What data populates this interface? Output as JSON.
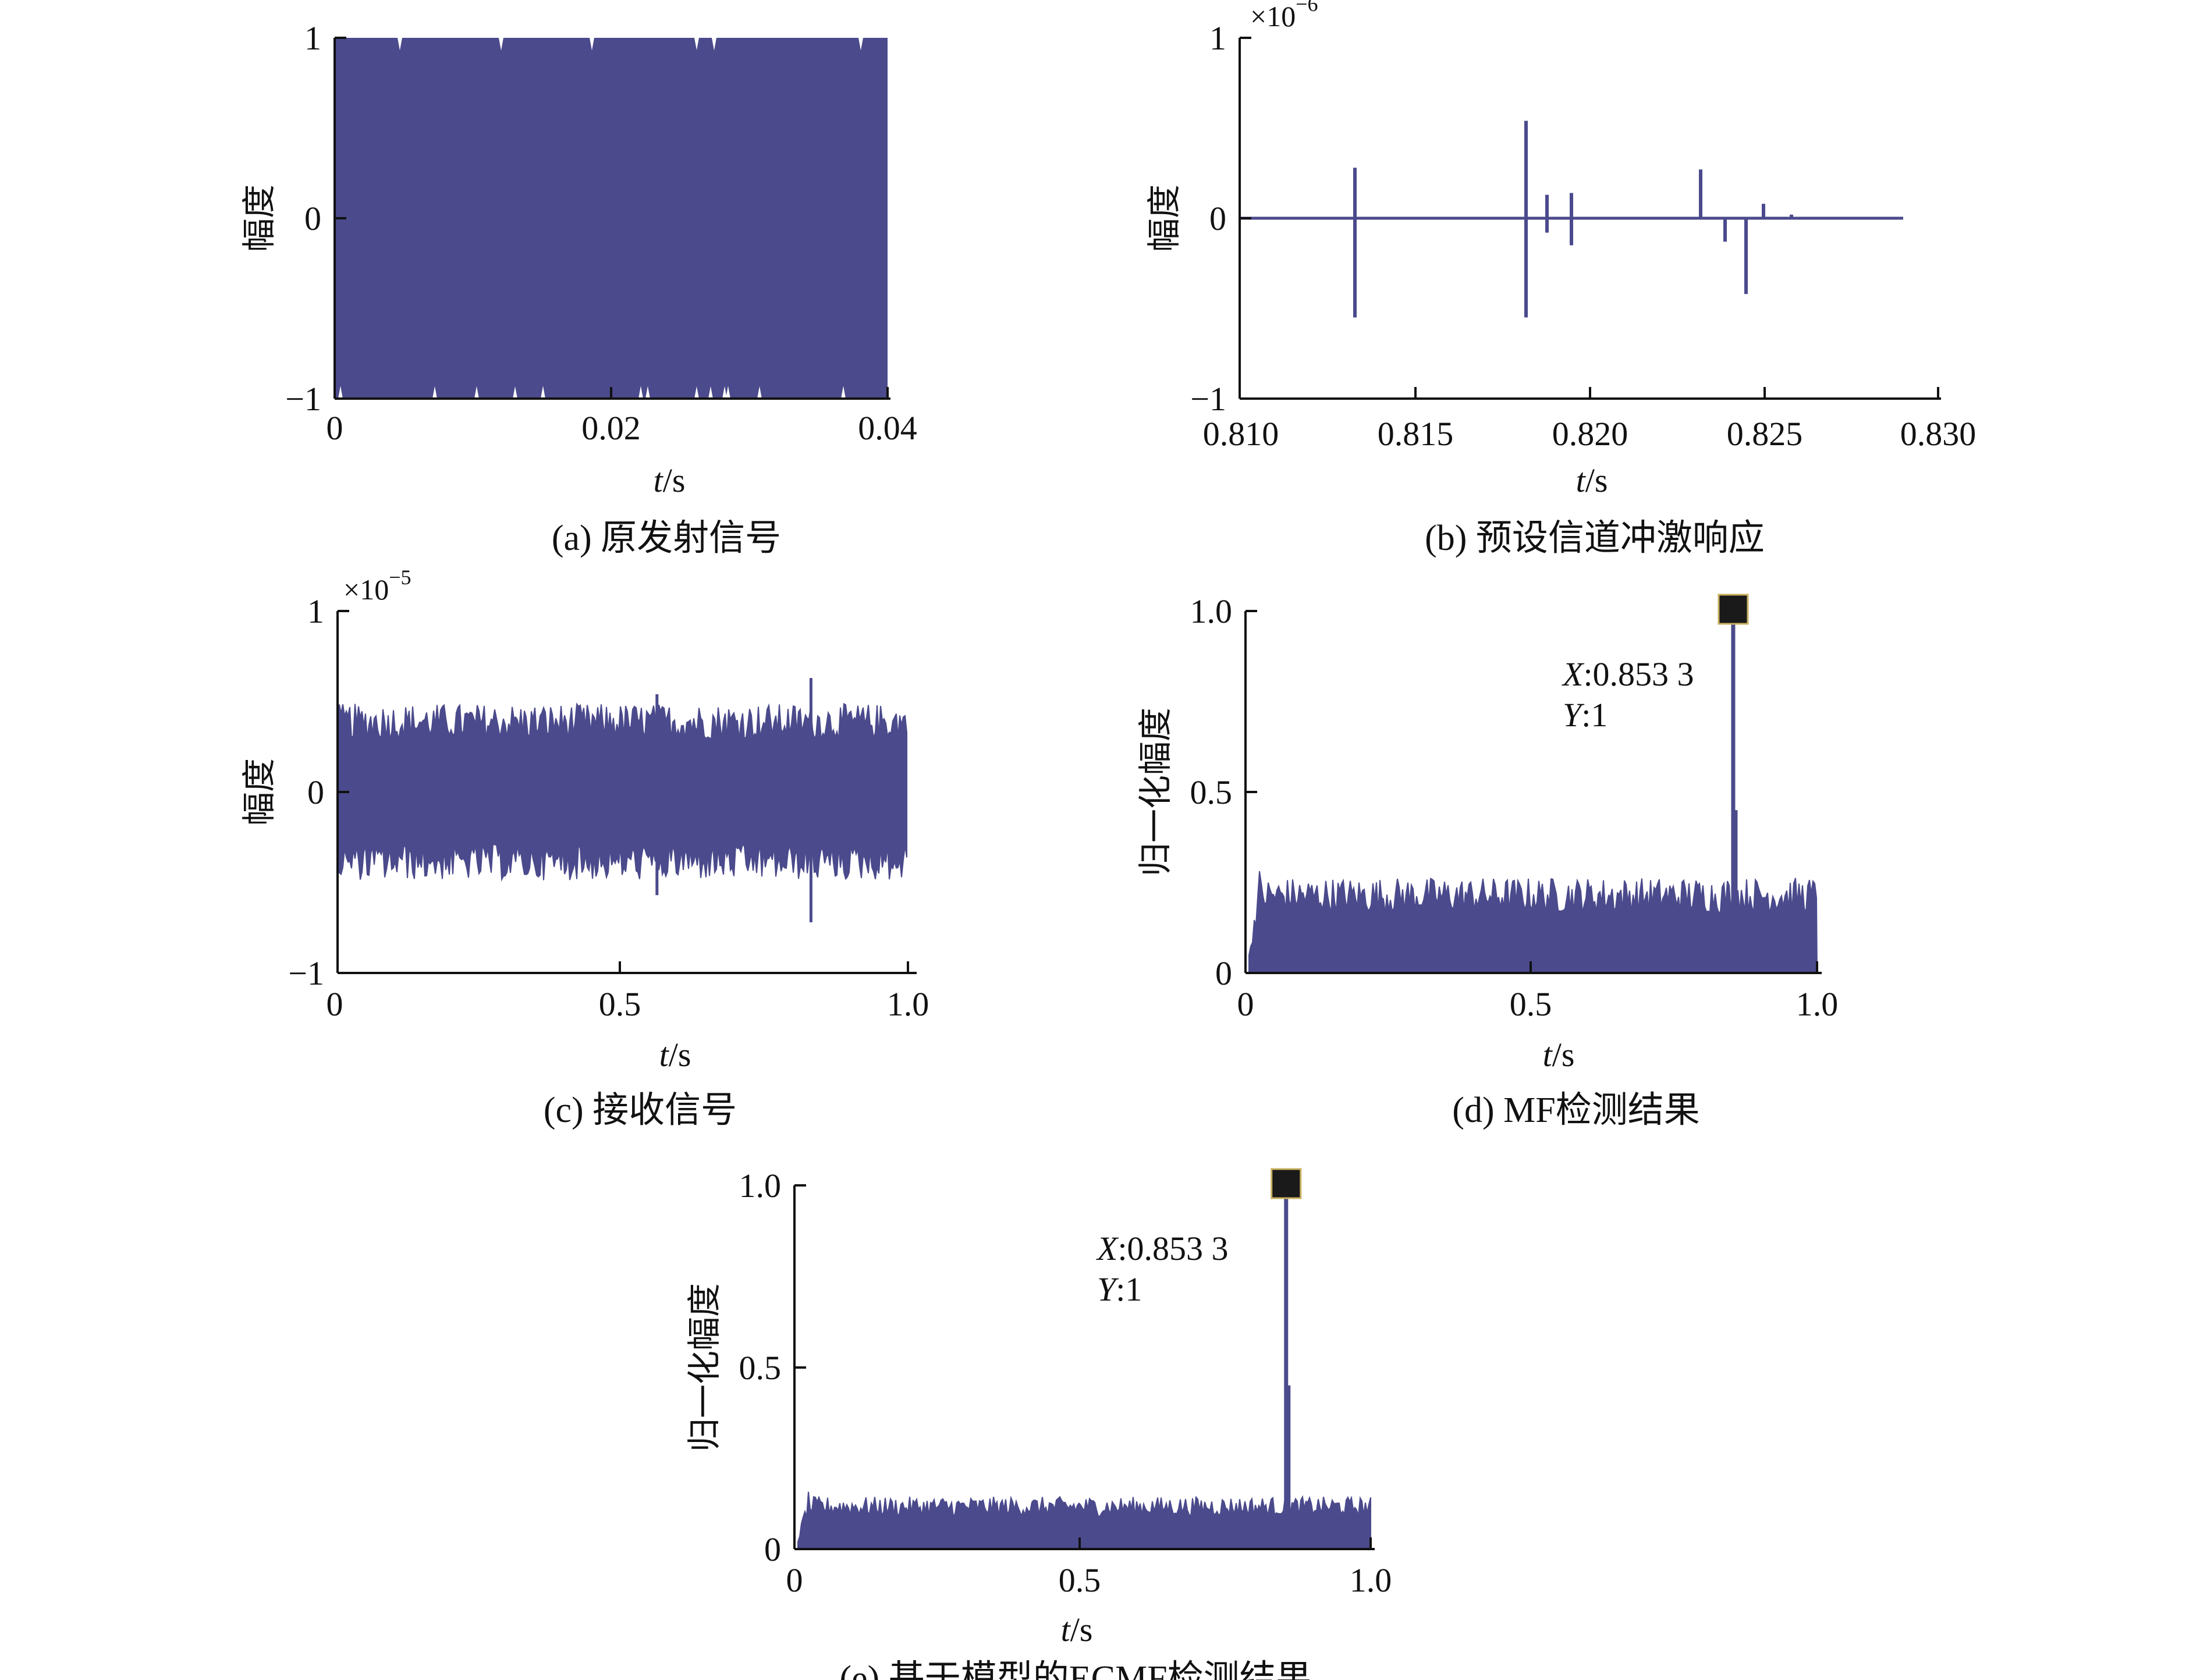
{
  "colors": {
    "signal": "#4b4a8c",
    "axis": "#111111",
    "marker": "#1a1a1a"
  },
  "chart_data": [
    {
      "id": "a",
      "type": "line",
      "caption": "(a) 原发射信号",
      "xlabel_italic": "t",
      "xlabel_unit": "/s",
      "ylabel": "幅度",
      "multiplier": "",
      "multiplier_exp": "",
      "xlim": [
        0,
        0.04
      ],
      "ylim": [
        -1,
        1
      ],
      "xticks": [
        "0",
        "0.02",
        "0.04"
      ],
      "yticks": [
        "−1",
        "0",
        "1"
      ],
      "signal": "dense-oscillation",
      "envelope": [
        -1,
        1
      ],
      "extent": [
        0,
        0.04
      ]
    },
    {
      "id": "b",
      "type": "line",
      "caption": "(b) 预设信道冲激响应",
      "xlabel_italic": "t",
      "xlabel_unit": "/s",
      "ylabel": "幅度",
      "multiplier": "×10",
      "multiplier_exp": "−6",
      "xlim": [
        0.81,
        0.83
      ],
      "ylim": [
        -1,
        1
      ],
      "xticks": [
        "0.810",
        "0.815",
        "0.820",
        "0.825",
        "0.830"
      ],
      "yticks": [
        "−1",
        "0",
        "1"
      ],
      "signal": "impulses",
      "extent": [
        0.81,
        0.829
      ],
      "impulses": [
        {
          "t": 0.8133,
          "min": -0.55,
          "max": 0.28
        },
        {
          "t": 0.8182,
          "min": -0.55,
          "max": 0.54
        },
        {
          "t": 0.8188,
          "min": -0.08,
          "max": 0.13
        },
        {
          "t": 0.8195,
          "min": -0.15,
          "max": 0.14
        },
        {
          "t": 0.8232,
          "min": 0.0,
          "max": 0.27
        },
        {
          "t": 0.8239,
          "min": -0.13,
          "max": 0.0
        },
        {
          "t": 0.8245,
          "min": -0.42,
          "max": 0.0
        },
        {
          "t": 0.825,
          "min": 0.0,
          "max": 0.08
        },
        {
          "t": 0.8258,
          "min": 0.0,
          "max": 0.02
        }
      ]
    },
    {
      "id": "c",
      "type": "line",
      "caption": "(c) 接收信号",
      "xlabel_italic": "t",
      "xlabel_unit": "/s",
      "ylabel": "幅度",
      "multiplier": "×10",
      "multiplier_exp": "−5",
      "xlim": [
        0,
        1.0
      ],
      "ylim": [
        -1,
        1
      ],
      "xticks": [
        "0",
        "0.5",
        "1.0"
      ],
      "yticks": [
        "−1",
        "0",
        "1"
      ],
      "signal": "noise-band",
      "envelope": [
        -0.4,
        0.4
      ],
      "extent": [
        0,
        1.0
      ],
      "spikes": [
        {
          "t": 0.56,
          "min": -0.57,
          "max": 0.54
        },
        {
          "t": 0.83,
          "min": -0.72,
          "max": 0.63
        }
      ]
    },
    {
      "id": "d",
      "type": "line",
      "caption": "(d) MF检测结果",
      "xlabel_italic": "t",
      "xlabel_unit": "/s",
      "ylabel": "归一化幅度",
      "multiplier": "",
      "multiplier_exp": "",
      "xlim": [
        0,
        1.0
      ],
      "ylim": [
        0,
        1.0
      ],
      "xticks": [
        "0",
        "0.5",
        "1.0"
      ],
      "yticks": [
        "0",
        "0.5",
        "1.0"
      ],
      "signal": "detection",
      "noise_level": 0.22,
      "extent": [
        0,
        1.0
      ],
      "peak": {
        "x": 0.8533,
        "y": 1
      },
      "annotation": {
        "x_label": "X",
        "x_value": ":0.853 3",
        "y_label": "Y",
        "y_value": ":1"
      }
    },
    {
      "id": "e",
      "type": "line",
      "caption": "(e) 基于模型的ECMF检测结果",
      "xlabel_italic": "t",
      "xlabel_unit": "/s",
      "ylabel": "归一化幅度",
      "multiplier": "",
      "multiplier_exp": "",
      "xlim": [
        0,
        1.0
      ],
      "ylim": [
        0,
        1.0
      ],
      "xticks": [
        "0",
        "0.5",
        "1.0"
      ],
      "yticks": [
        "0",
        "0.5",
        "1.0"
      ],
      "signal": "detection",
      "noise_level": 0.12,
      "extent": [
        0,
        1.0
      ],
      "peak": {
        "x": 0.8533,
        "y": 1
      },
      "annotation": {
        "x_label": "X",
        "x_value": ":0.853 3",
        "y_label": "Y",
        "y_value": ":1"
      }
    }
  ]
}
